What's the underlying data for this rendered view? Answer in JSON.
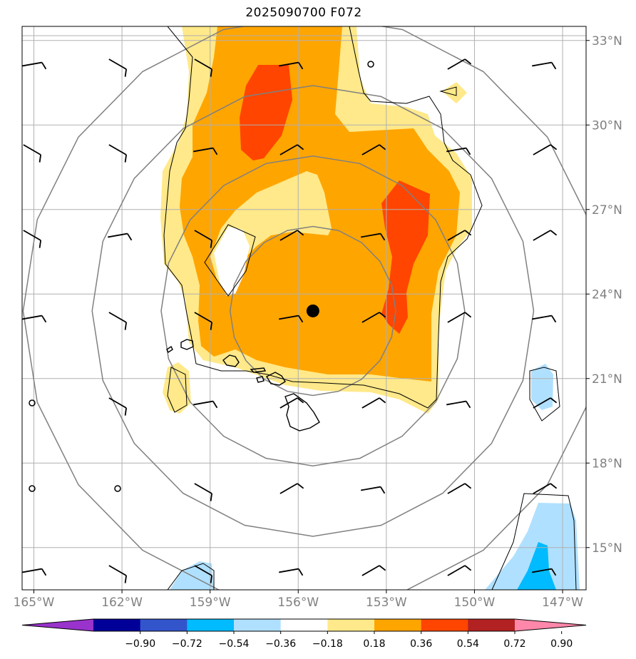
{
  "title": "2025090700 F072",
  "map": {
    "lon_range": [
      -165.4,
      -146.2
    ],
    "lat_range": [
      13.5,
      33.5
    ],
    "lon_ticks": [
      {
        "value": -165,
        "label": "165°W"
      },
      {
        "value": -162,
        "label": "162°W"
      },
      {
        "value": -159,
        "label": "159°W"
      },
      {
        "value": -156,
        "label": "156°W"
      },
      {
        "value": -153,
        "label": "153°W"
      },
      {
        "value": -150,
        "label": "150°W"
      },
      {
        "value": -147,
        "label": "147°W"
      }
    ],
    "lat_ticks": [
      {
        "value": 15,
        "label": "15°N"
      },
      {
        "value": 18,
        "label": "18°N"
      },
      {
        "value": 21,
        "label": "21°N"
      },
      {
        "value": 24,
        "label": "24°N"
      },
      {
        "value": 27,
        "label": "27°N"
      },
      {
        "value": 30,
        "label": "30°N"
      },
      {
        "value": 33,
        "label": "33°N"
      }
    ],
    "gridlines": true,
    "storm_center": {
      "lon": -155.5,
      "lat": 23.4
    },
    "range_rings_deg": [
      3,
      5.5,
      8,
      10.5
    ]
  },
  "colorbar": {
    "levels": [
      "−0.90",
      "−0.72",
      "−0.54",
      "−0.36",
      "−0.18",
      "0.18",
      "0.36",
      "0.54",
      "0.72",
      "0.90"
    ],
    "colors": [
      "#9933cc",
      "#000099",
      "#3355cc",
      "#00bbff",
      "#b0e0ff",
      "#ffffff",
      "#ffe98a",
      "#ffa500",
      "#ff4500",
      "#b22222",
      "#ff88aa"
    ]
  }
}
